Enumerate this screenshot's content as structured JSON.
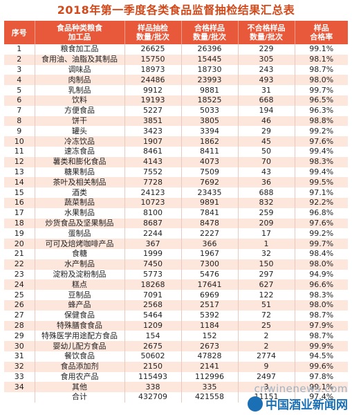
{
  "title": "2018年第一季度各类食品监督抽检结果汇总表",
  "headers": [
    "序号",
    "食品种类粮食\n加工品",
    "样品抽检\n数量/批次",
    "合格样品\n数量/批次",
    "不合格样品\n数量/批次",
    "样品\n合格率"
  ],
  "rows": [
    [
      "1",
      "粮食加工品",
      "26625",
      "26396",
      "229",
      "99.1%"
    ],
    [
      "2",
      "食用油、油脂及其制品",
      "15750",
      "15445",
      "305",
      "98.1%"
    ],
    [
      "3",
      "调味品",
      "18973",
      "18730",
      "243",
      "98.7%"
    ],
    [
      "4",
      "肉制品",
      "24486",
      "23993",
      "493",
      "98.0%"
    ],
    [
      "5",
      "乳制品",
      "9912",
      "9881",
      "31",
      "99.7%"
    ],
    [
      "6",
      "饮料",
      "19193",
      "18525",
      "668",
      "96.5%"
    ],
    [
      "7",
      "方便食品",
      "5227",
      "5033",
      "194",
      "96.3%"
    ],
    [
      "8",
      "饼干",
      "3851",
      "3805",
      "46",
      "98.8%"
    ],
    [
      "9",
      "罐头",
      "3423",
      "3394",
      "29",
      "99.2%"
    ],
    [
      "10",
      "冷冻饮品",
      "1907",
      "1862",
      "45",
      "97.6%"
    ],
    [
      "11",
      "速冻食品",
      "8461",
      "8411",
      "50",
      "99.4%"
    ],
    [
      "12",
      "薯类和膨化食品",
      "4143",
      "4073",
      "70",
      "98.3%"
    ],
    [
      "13",
      "糖果制品",
      "7552",
      "7509",
      "43",
      "99.4%"
    ],
    [
      "14",
      "茶叶及相关制品",
      "7728",
      "7692",
      "36",
      "99.5%"
    ],
    [
      "15",
      "酒类",
      "24123",
      "23435",
      "688",
      "97.1%"
    ],
    [
      "16",
      "蔬菜制品",
      "10723",
      "9891",
      "832",
      "92.2%"
    ],
    [
      "17",
      "水果制品",
      "8100",
      "7841",
      "259",
      "96.8%"
    ],
    [
      "18",
      "炒货食品及坚果制品",
      "8687",
      "8478",
      "209",
      "97.6%"
    ],
    [
      "19",
      "蛋制品",
      "2244",
      "2227",
      "17",
      "99.2%"
    ],
    [
      "20",
      "可可及焙烤咖啡产品",
      "367",
      "366",
      "1",
      "99.7%"
    ],
    [
      "21",
      "食糖",
      "1999",
      "1967",
      "32",
      "98.4%"
    ],
    [
      "22",
      "水产制品",
      "7450",
      "7300",
      "150",
      "98.0%"
    ],
    [
      "23",
      "淀粉及淀粉制品",
      "5773",
      "5476",
      "297",
      "94.9%"
    ],
    [
      "24",
      "糕点",
      "18268",
      "17641",
      "627",
      "96.6%"
    ],
    [
      "25",
      "豆制品",
      "7091",
      "6969",
      "122",
      "98.3%"
    ],
    [
      "26",
      "蜂产品",
      "2568",
      "2517",
      "51",
      "98.0%"
    ],
    [
      "27",
      "保健食品",
      "5464",
      "5392",
      "72",
      "98.7%"
    ],
    [
      "28",
      "特殊膳食食品",
      "1209",
      "1184",
      "25",
      "97.9%"
    ],
    [
      "29",
      "特殊医学用途配方食品",
      "154",
      "152",
      "2",
      "98.7%"
    ],
    [
      "30",
      "婴幼儿配方食品",
      "2675",
      "2673",
      "2",
      "99.9%"
    ],
    [
      "31",
      "餐饮食品",
      "50602",
      "47828",
      "2774",
      "94.5%"
    ],
    [
      "32",
      "食品添加剂",
      "2150",
      "2141",
      "9",
      "99.6%"
    ],
    [
      "33",
      "食用农产品",
      "115493",
      "112996",
      "2497",
      "97.8%"
    ],
    [
      "34",
      "其他",
      "338",
      "335",
      "3",
      "99.1%"
    ]
  ],
  "total": [
    "",
    "合计",
    "432709",
    "421558",
    "11151",
    "97.4%"
  ],
  "watermark": {
    "url": "cnwinenews.com",
    "cn": "中国酒业新闻网",
    "logo_color": "#1a6fb5"
  }
}
